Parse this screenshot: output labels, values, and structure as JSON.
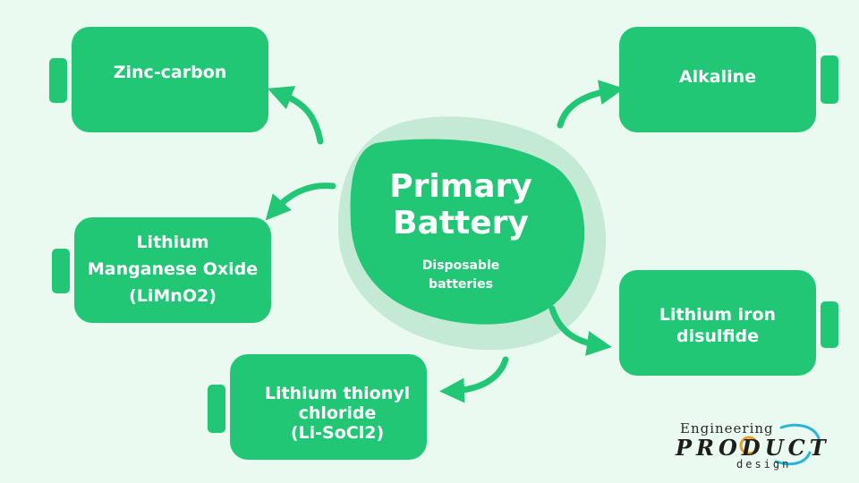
{
  "center": {
    "title_line1": "Primary",
    "title_line2": "Battery",
    "subtitle_line1": "Disposable",
    "subtitle_line2": "batteries"
  },
  "batteries": {
    "zinc_carbon": "Zinc-carbon",
    "alkaline": "Alkaline",
    "limno2": {
      "line1": "Lithium",
      "line2": "Manganese Oxide",
      "line3": "(LiMnO2)"
    },
    "lithium_iron": {
      "line1": "Lithium iron",
      "line2": "disulfide"
    },
    "lisocl2": {
      "line1": "Lithium thionyl",
      "line2": "chloride",
      "line3": "(Li-SoCl2)"
    }
  },
  "logo": {
    "top": "Engineering",
    "mid": "PRODUCT",
    "bot": "design"
  },
  "colors": {
    "background": "#ebfaf1",
    "battery": "#22c776",
    "blob_shadow": "#c4e9d4"
  }
}
